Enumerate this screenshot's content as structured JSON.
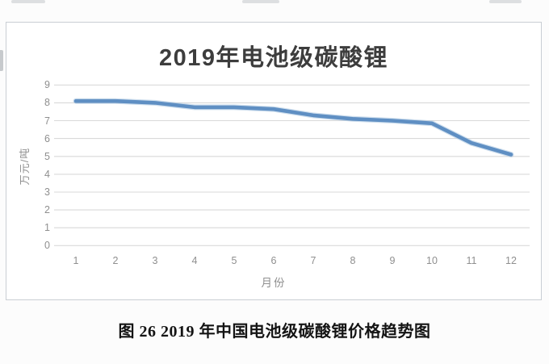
{
  "page": {
    "caption": "图 26 2019 年中国电池级碳酸锂价格趋势图"
  },
  "chart_data": {
    "type": "line",
    "title": "2019年电池级碳酸锂",
    "xlabel": "月份",
    "ylabel": "万元/吨",
    "categories": [
      "1",
      "2",
      "3",
      "4",
      "5",
      "6",
      "7",
      "8",
      "9",
      "10",
      "11",
      "12"
    ],
    "values": [
      8.1,
      8.1,
      8.0,
      7.75,
      7.75,
      7.65,
      7.3,
      7.1,
      7.0,
      6.85,
      5.75,
      5.1
    ],
    "ylim": [
      0,
      9
    ],
    "yticks": [
      0,
      1,
      2,
      3,
      4,
      5,
      6,
      7,
      8,
      9
    ],
    "grid": true,
    "legend": "none",
    "unit": "万元/吨"
  },
  "colors": {
    "line": "#5f8fc3",
    "line_soft": "#a8c4e0",
    "grid": "#d9d9d9",
    "axis_text": "#8f8f8f",
    "title_text": "#3d3d3d",
    "caption_text": "#141414",
    "panel_border": "#c9ced4"
  }
}
